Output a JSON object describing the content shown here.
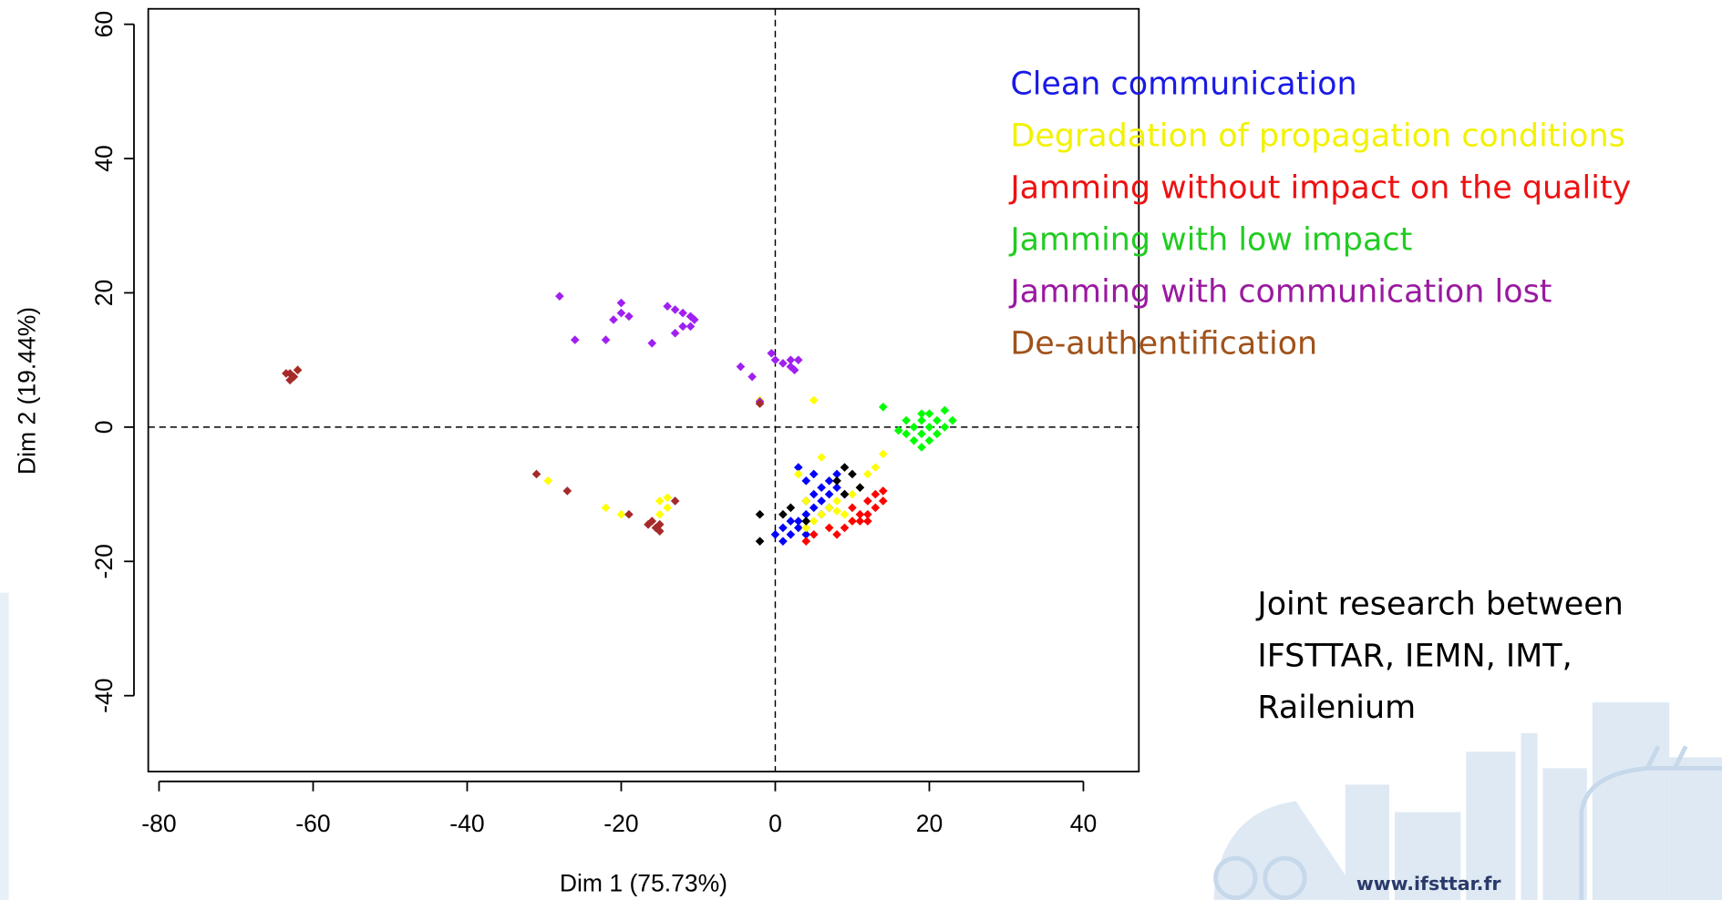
{
  "chart_data": {
    "type": "scatter",
    "x_label": "Dim 1 (75.73%)",
    "y_label": "Dim 2 (19.44%)",
    "xlim": [
      -81.4,
      47.2
    ],
    "ylim": [
      -51.3,
      62.3
    ],
    "xticks": [
      -80,
      -60,
      -40,
      -20,
      0,
      20,
      40
    ],
    "yticks": [
      -40,
      -20,
      0,
      20,
      40,
      60
    ],
    "reference_lines": {
      "x": 0,
      "y": 0
    },
    "series": [
      {
        "name": "Clean communication",
        "color": "#0000ff",
        "label_color": "#1a1ae6",
        "x": [
          0,
          1,
          2,
          3,
          4,
          5,
          6,
          7,
          8,
          6,
          5,
          3,
          4,
          7,
          8,
          2,
          3,
          4,
          6,
          7,
          9,
          1,
          4,
          5
        ],
        "y": [
          -16,
          -15,
          -16,
          -14,
          -13,
          -12,
          -11,
          -10,
          -9,
          -9,
          -10,
          -6,
          -8,
          -8,
          -7,
          -14,
          -15,
          -16,
          -13,
          -12,
          -10,
          -17,
          -11,
          -7
        ]
      },
      {
        "name": "Degradation of propagation conditions",
        "color": "#ffff00",
        "label_color": "#f2f200",
        "x": [
          -62,
          -29.5,
          -22,
          -20,
          -15,
          -14,
          -14,
          -15,
          -2,
          5,
          6,
          3,
          4,
          5,
          6,
          7,
          8,
          9,
          10,
          11,
          12,
          13,
          14,
          10,
          8,
          4,
          7
        ],
        "y": [
          8.5,
          -8,
          -12,
          -13,
          -11,
          -10.5,
          -12,
          -13,
          4,
          4,
          -4.5,
          -7,
          -11,
          -14,
          -13,
          -12,
          -11,
          -13,
          -10,
          -9,
          -7,
          -6,
          -4,
          -14,
          -12.5,
          -15,
          -15
        ]
      },
      {
        "name": "Jamming without impact on the quality",
        "color": "#ff0000",
        "label_color": "#ee1111",
        "x": [
          4,
          5,
          7,
          9,
          10,
          11,
          12,
          13,
          12,
          13,
          14,
          11,
          10,
          8,
          12,
          14
        ],
        "y": [
          -17,
          -16,
          -15,
          -15,
          -14,
          -13,
          -13,
          -12,
          -11,
          -10,
          -11,
          -14,
          -12,
          -16,
          -14,
          -9.5
        ]
      },
      {
        "name": "Jamming with low impact",
        "color": "#00ff00",
        "label_color": "#22cc22",
        "x": [
          14,
          16,
          17,
          18,
          19,
          20,
          21,
          22,
          23,
          19,
          20,
          18,
          19,
          17,
          20,
          21,
          22,
          19
        ],
        "y": [
          3,
          -0.5,
          -1,
          0,
          1,
          2,
          1,
          2.5,
          1,
          -1,
          -2,
          -2,
          -3,
          1,
          0,
          -1,
          0,
          2
        ]
      },
      {
        "name": "Jamming with communication lost",
        "color": "#a020f0",
        "label_color": "#9a1aa0",
        "x": [
          -28,
          -20,
          -20,
          -19,
          -21,
          -26,
          -22,
          -16,
          -14,
          -13,
          -12,
          -11,
          -10.5,
          -12,
          -13,
          -11,
          -4.5,
          -3,
          -2,
          -0.5,
          0,
          1,
          2,
          2,
          3,
          2.5
        ],
        "y": [
          19.5,
          18.5,
          17,
          16.5,
          16,
          13,
          13,
          12.5,
          18,
          17.5,
          17,
          16.5,
          16,
          15,
          14,
          15,
          9,
          7.5,
          3.8,
          11,
          10,
          9.5,
          10,
          9,
          10,
          8.5
        ]
      },
      {
        "name": "De-authentification",
        "color": "#a52a2a",
        "label_color": "#a0521a",
        "x": [
          -63,
          -62.5,
          -63,
          -62,
          -63.5,
          -31,
          -27,
          -19,
          -16,
          -15.5,
          -15,
          -16.5,
          -15,
          -13,
          -2
        ],
        "y": [
          8,
          7.5,
          7,
          8.5,
          8,
          -7,
          -9.5,
          -13,
          -14,
          -15,
          -14.5,
          -14.5,
          -15.5,
          -11,
          3.5
        ]
      },
      {
        "color": "#000000",
        "x": [
          -2,
          -2,
          1,
          2,
          4,
          8,
          9,
          10,
          9,
          11
        ],
        "y": [
          -13,
          -17,
          -13,
          -12,
          -14,
          -8,
          -6,
          -7,
          -10,
          -9
        ]
      }
    ]
  },
  "note": {
    "lines": [
      "Joint research between",
      "IFSTTAR, IEMN, IMT,",
      "Railenium"
    ],
    "url": "www.ifsttar.fr"
  }
}
